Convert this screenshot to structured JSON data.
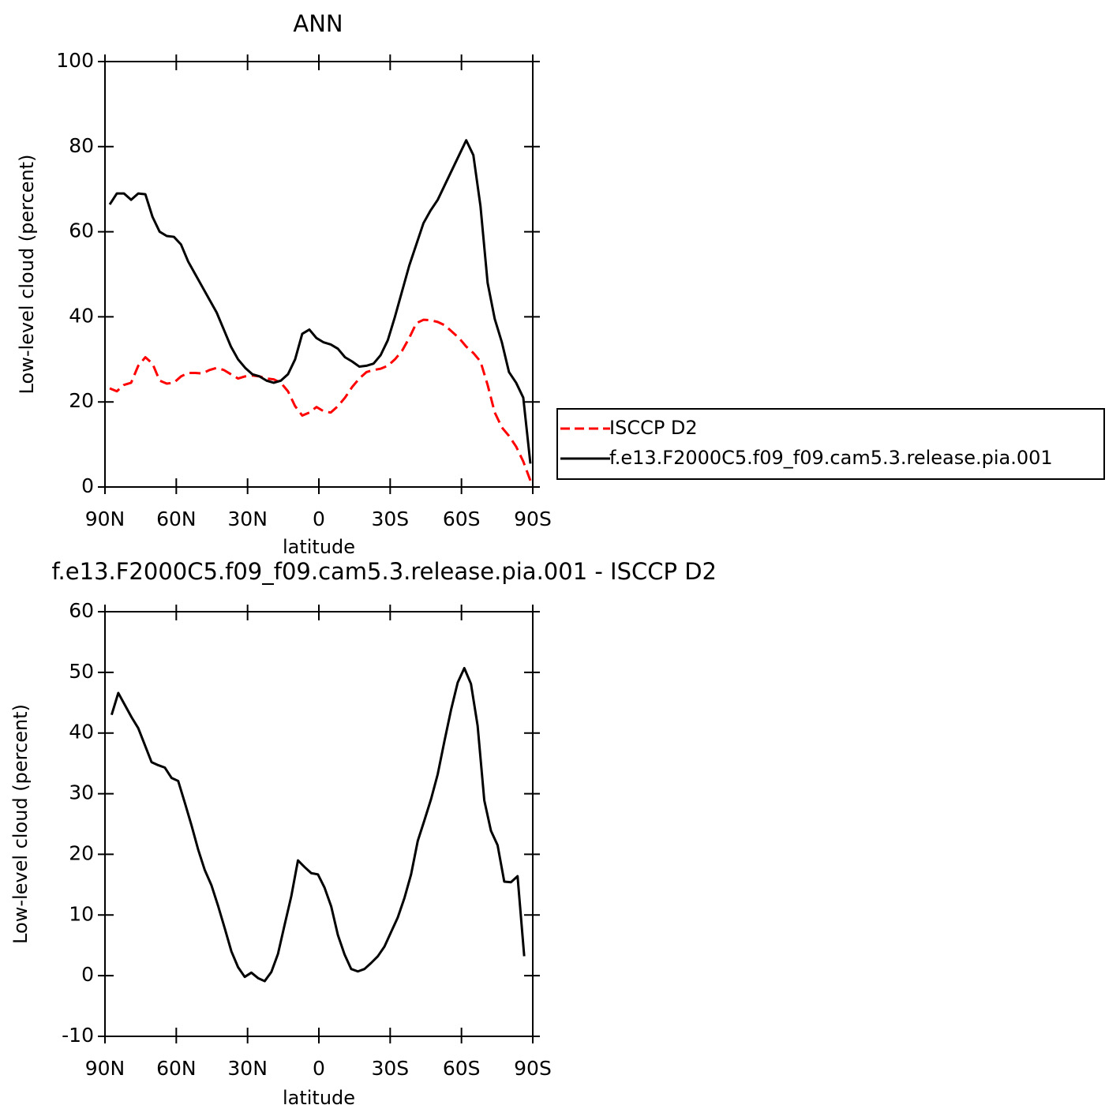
{
  "chart_data": [
    {
      "type": "line",
      "title": "ANN",
      "xlabel": "latitude",
      "ylabel": "Low-level cloud (percent)",
      "legend": "outside-right",
      "x": [
        88,
        85,
        82,
        79,
        76,
        73,
        70,
        67,
        64,
        61,
        58,
        55,
        52,
        49,
        46,
        43,
        40,
        37,
        34,
        31,
        28,
        25,
        22,
        19,
        16,
        13,
        10,
        7,
        4,
        1,
        -2,
        -5,
        -8,
        -11,
        -14,
        -17,
        -20,
        -23,
        -26,
        -29,
        -32,
        -35,
        -38,
        -41,
        -44,
        -47,
        -50,
        -53,
        -56,
        -59,
        -62,
        -65,
        -68,
        -71,
        -74,
        -77,
        -80,
        -83,
        -86,
        -89
      ],
      "series": [
        {
          "name": "ISCCP D2",
          "color": "#ff0000",
          "dashed": true,
          "values": [
            23.2,
            22.5,
            24,
            24.5,
            28.5,
            30.5,
            29,
            25,
            24.3,
            24.5,
            26,
            26.8,
            26.8,
            26.7,
            27.5,
            28,
            27.5,
            26.5,
            25.5,
            26,
            26.2,
            26,
            25.5,
            25.3,
            24.5,
            22.5,
            19,
            16.8,
            17.5,
            18.8,
            17.8,
            17.5,
            19,
            21,
            23.5,
            25.5,
            27,
            27.5,
            27.8,
            28.5,
            30,
            32,
            35,
            38.5,
            39.3,
            39.2,
            38.8,
            38,
            36.5,
            35,
            33,
            31.5,
            29.5,
            24,
            17.5,
            14,
            12,
            9.5,
            6,
            1.5
          ]
        },
        {
          "name": "f.e13.F2000C5.f09_f09.cam5.3.release.pia.001",
          "color": "#000000",
          "dashed": false,
          "values": [
            66.4,
            69,
            69,
            67.5,
            69,
            68.8,
            63.5,
            60,
            59,
            58.8,
            57,
            53,
            50,
            47,
            44,
            41,
            37,
            33,
            30,
            28,
            26.5,
            26,
            25,
            24.5,
            25,
            26.5,
            30,
            36,
            37,
            35,
            34,
            33.5,
            32.5,
            30.5,
            29.5,
            28.3,
            28.5,
            29,
            31,
            34.5,
            40,
            46,
            52,
            57,
            62,
            65,
            67.5,
            71,
            74.5,
            78,
            81.5,
            78,
            66,
            48,
            39.5,
            34,
            27,
            24.5,
            21,
            5.5
          ]
        }
      ],
      "xlim": [
        90,
        -90
      ],
      "xticks": [
        {
          "value": 90,
          "label": "90N"
        },
        {
          "value": 60,
          "label": "60N"
        },
        {
          "value": 30,
          "label": "30N"
        },
        0,
        {
          "value": -30,
          "label": "30S"
        },
        {
          "value": -60,
          "label": "60S"
        },
        {
          "value": -90,
          "label": "90S"
        }
      ],
      "ylim": [
        0,
        100
      ],
      "yticks": [
        0,
        20,
        40,
        60,
        80,
        100
      ]
    },
    {
      "type": "line",
      "title": "f.e13.F2000C5.f09_f09.cam5.3.release.pia.001 - ISCCP D2",
      "xlabel": "latitude",
      "ylabel": "Low-level cloud (percent)",
      "x": [
        87.2,
        84.4,
        81.6,
        78.8,
        76.0,
        73.2,
        70.4,
        67.6,
        64.8,
        62.0,
        59.2,
        56.4,
        53.6,
        50.8,
        48.0,
        45.2,
        42.4,
        39.6,
        36.8,
        34.0,
        31.2,
        28.4,
        25.6,
        22.8,
        20.0,
        17.2,
        14.4,
        11.6,
        8.8,
        6.0,
        3.2,
        0.4,
        -2.4,
        -5.2,
        -8.0,
        -10.8,
        -13.6,
        -16.4,
        -19.2,
        -22.0,
        -24.8,
        -27.6,
        -30.4,
        -33.2,
        -36.0,
        -38.8,
        -41.6,
        -44.4,
        -47.2,
        -50.0,
        -52.8,
        -55.6,
        -58.4,
        -61.2,
        -64.0,
        -66.8,
        -69.6,
        -72.4,
        -75.2,
        -78.0,
        -80.8,
        -83.6,
        -86.4
      ],
      "series": [
        {
          "color": "#000000",
          "dashed": false,
          "values": [
            43,
            46.6,
            44.6,
            42.6,
            40.8,
            38,
            35.2,
            34.7,
            34.3,
            32.6,
            32.1,
            28.5,
            24.8,
            20.8,
            17.4,
            14.9,
            11.5,
            7.8,
            4,
            1.4,
            -0.2,
            0.5,
            -0.4,
            -0.9,
            0.6,
            3.6,
            8.4,
            13.1,
            19,
            17.9,
            16.9,
            16.7,
            14.5,
            11.4,
            6.7,
            3.5,
            1.1,
            0.7,
            1.1,
            2.1,
            3.2,
            4.8,
            7.2,
            9.6,
            12.8,
            16.7,
            22.2,
            25.6,
            29.1,
            33.2,
            38.6,
            43.8,
            48.3,
            50.7,
            48.1,
            41.2,
            28.9,
            23.9,
            21.5,
            15.5,
            15.4,
            16.4,
            3.2
          ]
        }
      ],
      "xlim": [
        90,
        -90
      ],
      "xticks": [
        {
          "value": 90,
          "label": "90N"
        },
        {
          "value": 60,
          "label": "60N"
        },
        {
          "value": 30,
          "label": "30N"
        },
        0,
        {
          "value": -30,
          "label": "30S"
        },
        {
          "value": -60,
          "label": "60S"
        },
        {
          "value": -90,
          "label": "90S"
        }
      ],
      "ylim": [
        -10,
        60
      ],
      "yticks": [
        -10,
        0,
        10,
        20,
        30,
        40,
        50,
        60
      ]
    }
  ]
}
